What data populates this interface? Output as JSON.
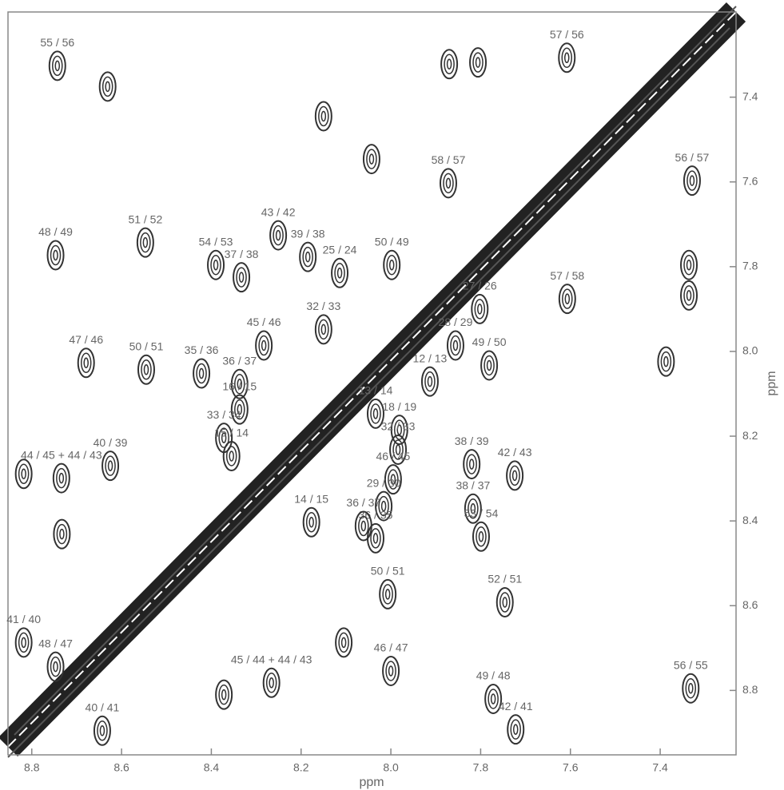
{
  "chart_data": {
    "type": "contour",
    "xlabel": "ppm",
    "ylabel": "ppm",
    "xlim": [
      8.853,
      7.231
    ],
    "ylim": [
      7.199,
      8.952
    ],
    "xticks": [
      8.8,
      8.6,
      8.4,
      8.2,
      {
        "value": 8.0,
        "label": "8.0"
      },
      7.8,
      7.6,
      7.4
    ],
    "yticks": [
      7.4,
      7.6,
      7.8,
      {
        "value": 8.0,
        "label": "8.0"
      },
      8.2,
      8.4,
      8.6,
      8.8
    ],
    "color": "#333333",
    "peaks": [
      {
        "label": "55 / 56",
        "x": 8.743,
        "y": 7.326
      },
      {
        "label": "57 / 56",
        "x": 7.608,
        "y": 7.307
      },
      {
        "label": "58 / 57",
        "x": 7.872,
        "y": 7.603
      },
      {
        "label": "56 / 57",
        "x": 7.329,
        "y": 7.597
      },
      {
        "label": "37 / 38",
        "x": 8.333,
        "y": 7.825
      },
      {
        "label": "43 / 42",
        "x": 8.251,
        "y": 7.726
      },
      {
        "label": "39 / 38",
        "x": 8.185,
        "y": 7.777
      },
      {
        "label": "25 / 24",
        "x": 8.114,
        "y": 7.815
      },
      {
        "label": "50 / 49",
        "x": 7.998,
        "y": 7.796
      },
      {
        "label": "48 / 49",
        "x": 8.747,
        "y": 7.773
      },
      {
        "label": "51 / 52",
        "x": 8.547,
        "y": 7.743
      },
      {
        "label": "54 / 53",
        "x": 8.39,
        "y": 7.796
      },
      {
        "label": "27 / 26",
        "x": 7.802,
        "y": 7.9
      },
      {
        "label": "57 / 58",
        "x": 7.607,
        "y": 7.876
      },
      {
        "label": "28 / 29",
        "x": 7.856,
        "y": 7.986
      },
      {
        "label": "49 / 50",
        "x": 7.781,
        "y": 8.033
      },
      {
        "label": "32 / 33",
        "x": 8.15,
        "y": 7.948
      },
      {
        "label": "45 / 46",
        "x": 8.283,
        "y": 7.986
      },
      {
        "label": "35 / 36",
        "x": 8.422,
        "y": 8.052
      },
      {
        "label": "47 / 46",
        "x": 8.679,
        "y": 8.027
      },
      {
        "label": "50 / 51",
        "x": 8.545,
        "y": 8.043
      },
      {
        "label": "36 / 37",
        "x": 8.337,
        "y": 8.077
      },
      {
        "label": "12 / 13",
        "x": 7.913,
        "y": 8.071
      },
      {
        "label": "13 / 14",
        "x": 8.034,
        "y": 8.147
      },
      {
        "label": "18 / 19",
        "x": 7.981,
        "y": 8.185
      },
      {
        "label": "16 / 15",
        "x": 8.337,
        "y": 8.137
      },
      {
        "label": "44 / 45 + 44 / 43",
        "x": 8.734,
        "y": 8.299
      },
      {
        "label": "38 / 39",
        "x": 7.82,
        "y": 8.266
      },
      {
        "label": "42 / 43",
        "x": 7.724,
        "y": 8.293
      },
      {
        "label": "32 / 33",
        "x": 7.984,
        "y": 8.232
      },
      {
        "label": "33 / 34",
        "x": 8.372,
        "y": 8.204
      },
      {
        "label": "15 / 14",
        "x": 8.355,
        "y": 8.247
      },
      {
        "label": "40 / 39",
        "x": 8.625,
        "y": 8.27
      },
      {
        "label": "46 / 45",
        "x": 7.995,
        "y": 8.302
      },
      {
        "label": "38 / 37",
        "x": 7.817,
        "y": 8.371
      },
      {
        "label": "29 / 30",
        "x": 8.016,
        "y": 8.365
      },
      {
        "label": "53 / 54",
        "x": 7.799,
        "y": 8.437
      },
      {
        "label": "14 / 15",
        "x": 8.177,
        "y": 8.403
      },
      {
        "label": "36 / 35",
        "x": 8.034,
        "y": 8.441
      },
      {
        "label": "36 / 37",
        "x": 8.061,
        "y": 8.412
      },
      {
        "label": "50 / 51",
        "x": 8.007,
        "y": 8.573
      },
      {
        "label": "52 / 51",
        "x": 7.746,
        "y": 8.592
      },
      {
        "label": "41 / 40",
        "x": 8.818,
        "y": 8.687
      },
      {
        "label": "48 / 47",
        "x": 8.747,
        "y": 8.744
      },
      {
        "label": "46 / 47",
        "x": 8.0,
        "y": 8.754
      },
      {
        "label": "49 / 48",
        "x": 7.772,
        "y": 8.82
      },
      {
        "label": "42 / 41",
        "x": 7.722,
        "y": 8.892
      },
      {
        "label": "56 / 55",
        "x": 7.332,
        "y": 8.795
      },
      {
        "label": "40 / 41",
        "x": 8.643,
        "y": 8.895
      },
      {
        "label": "45 / 44 + 44 / 43",
        "x": 8.266,
        "y": 8.782
      }
    ],
    "unlabeled_peaks": {
      "x": [
        8.631,
        7.806,
        7.87,
        8.15,
        8.043,
        7.387,
        7.336,
        7.336,
        8.372,
        8.818,
        8.733,
        8.105
      ],
      "y": [
        7.375,
        7.318,
        7.322,
        7.445,
        7.546,
        8.024,
        7.796,
        7.868,
        8.81,
        8.289,
        8.431,
        8.687
      ]
    }
  }
}
